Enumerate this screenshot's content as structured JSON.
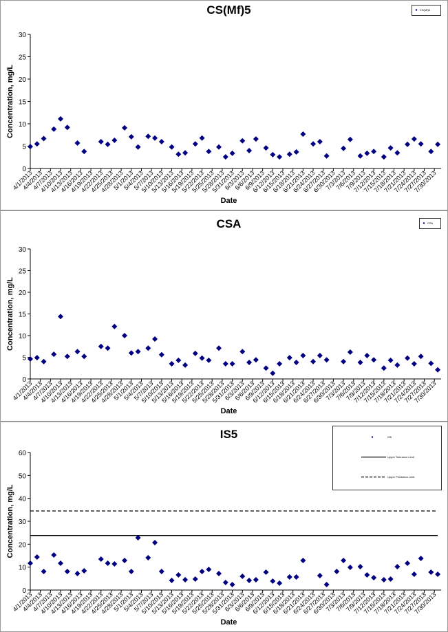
{
  "chart_data": [
    {
      "type": "scatter",
      "title": "CS(Mf)5",
      "x_label": "Date",
      "y_label": "Concentration, mg/L",
      "x": [
        "4/1/2013",
        "4/3/2013",
        "4/5/2013",
        "4/8/2013",
        "4/10/2013",
        "4/12/2013",
        "4/15/2013",
        "4/17/2013",
        "4/22/2013",
        "4/24/2013",
        "4/26/2013",
        "4/29/2013",
        "5/1/2013",
        "5/3/2013",
        "5/6/2013",
        "5/8/2013",
        "5/10/2013",
        "5/13/2013",
        "5/15/2013",
        "5/17/2013",
        "5/20/2013",
        "5/22/2013",
        "5/24/2013",
        "5/27/2013",
        "5/29/2013",
        "5/31/2013",
        "6/3/2013",
        "6/5/2013",
        "6/7/2013",
        "6/10/2013",
        "6/12/2013",
        "6/14/2013",
        "6/17/2013",
        "6/19/2013",
        "6/21/2013",
        "6/24/2013",
        "6/26/2013",
        "6/28/2013",
        "7/1/2013",
        "7/3/2013",
        "7/5/2013",
        "7/8/2013",
        "7/10/2013",
        "7/12/2013",
        "7/15/2013",
        "7/17/2013",
        "7/19/2013",
        "7/22/2013",
        "7/24/2013",
        "7/26/2013",
        "7/29/2013",
        "7/31/2013"
      ],
      "series": [
        {
          "name": "CS(Mf)5",
          "color": "#000080",
          "values": [
            4.9,
            5.5,
            6.7,
            8.8,
            11.1,
            9.2,
            5.7,
            3.8,
            6.0,
            5.4,
            6.3,
            9.1,
            7.1,
            4.8,
            7.2,
            6.8,
            6.0,
            4.8,
            3.2,
            3.5,
            5.5,
            6.8,
            3.8,
            4.8,
            2.6,
            3.4,
            6.2,
            4.0,
            6.6,
            4.6,
            3.1,
            2.6,
            3.2,
            3.7,
            7.7,
            5.5,
            6.0,
            2.8,
            null,
            4.5,
            6.5,
            2.8,
            3.4,
            3.8,
            2.6,
            4.6,
            3.5,
            5.4,
            6.6,
            5.5,
            3.8,
            5.4
          ]
        }
      ],
      "xlim": [
        "4/1/2013",
        "8/1/2013"
      ],
      "xticks": [
        "4/1/2013",
        "4/4/2013",
        "4/7/2013",
        "4/10/2013",
        "4/13/2013",
        "4/16/2013",
        "4/19/2013",
        "4/22/2013",
        "4/25/2013",
        "4/28/2013",
        "5/1/2013",
        "5/4/2013",
        "5/7/2013",
        "5/10/2013",
        "5/13/2013",
        "5/16/2013",
        "5/19/2013",
        "5/22/2013",
        "5/25/2013",
        "5/28/2013",
        "5/31/2013",
        "6/3/2013",
        "6/6/2013",
        "6/9/2013",
        "6/12/2013",
        "6/15/2013",
        "6/18/2013",
        "6/21/2013",
        "6/24/2013",
        "6/27/2013",
        "6/30/2013",
        "7/3/2013",
        "7/6/2013",
        "7/9/2013",
        "7/12/2013",
        "7/15/2013",
        "7/18/2013",
        "7/21/2013",
        "7/24/2013",
        "7/27/2013",
        "7/30/2013"
      ],
      "ylim": [
        0,
        30
      ],
      "yticks": [
        0,
        5,
        10,
        15,
        20,
        25,
        30
      ],
      "legend": "upper right"
    },
    {
      "type": "scatter",
      "title": "CSA",
      "x_label": "Date",
      "y_label": "Concentration, mg/L",
      "x": [
        "4/1/2013",
        "4/3/2013",
        "4/5/2013",
        "4/8/2013",
        "4/10/2013",
        "4/12/2013",
        "4/15/2013",
        "4/17/2013",
        "4/22/2013",
        "4/24/2013",
        "4/26/2013",
        "4/29/2013",
        "5/1/2013",
        "5/3/2013",
        "5/6/2013",
        "5/8/2013",
        "5/10/2013",
        "5/13/2013",
        "5/15/2013",
        "5/17/2013",
        "5/20/2013",
        "5/22/2013",
        "5/24/2013",
        "5/27/2013",
        "5/29/2013",
        "5/31/2013",
        "6/3/2013",
        "6/5/2013",
        "6/7/2013",
        "6/10/2013",
        "6/12/2013",
        "6/14/2013",
        "6/17/2013",
        "6/19/2013",
        "6/21/2013",
        "6/24/2013",
        "6/26/2013",
        "6/28/2013",
        "7/1/2013",
        "7/3/2013",
        "7/5/2013",
        "7/8/2013",
        "7/10/2013",
        "7/12/2013",
        "7/15/2013",
        "7/17/2013",
        "7/19/2013",
        "7/22/2013",
        "7/24/2013",
        "7/26/2013",
        "7/29/2013",
        "7/31/2013"
      ],
      "series": [
        {
          "name": "CSA",
          "color": "#000080",
          "values": [
            4.6,
            4.9,
            4.0,
            5.7,
            14.4,
            5.2,
            6.3,
            5.2,
            7.5,
            7.1,
            12.1,
            10.0,
            6.0,
            6.3,
            7.1,
            9.2,
            5.6,
            3.5,
            4.3,
            3.2,
            5.9,
            4.8,
            4.3,
            7.1,
            3.5,
            3.5,
            6.3,
            3.8,
            4.4,
            2.5,
            1.3,
            3.5,
            4.9,
            3.8,
            5.4,
            4.0,
            5.4,
            4.4,
            null,
            4.0,
            6.2,
            3.8,
            5.4,
            4.4,
            2.5,
            4.3,
            3.2,
            4.8,
            3.5,
            5.2,
            3.6,
            2.1
          ]
        }
      ],
      "xlim": [
        "4/1/2013",
        "8/1/2013"
      ],
      "xticks": [
        "4/1/2013",
        "4/4/2013",
        "4/7/2013",
        "4/10/2013",
        "4/13/2013",
        "4/16/2013",
        "4/19/2013",
        "4/22/2013",
        "4/25/2013",
        "4/28/2013",
        "5/1/2013",
        "5/4/2013",
        "5/7/2013",
        "5/10/2013",
        "5/13/2013",
        "5/16/2013",
        "5/19/2013",
        "5/22/2013",
        "5/25/2013",
        "5/28/2013",
        "5/31/2013",
        "6/3/2013",
        "6/6/2013",
        "6/9/2013",
        "6/12/2013",
        "6/15/2013",
        "6/18/2013",
        "6/21/2013",
        "6/24/2013",
        "6/27/2013",
        "6/30/2013",
        "7/3/2013",
        "7/6/2013",
        "7/9/2013",
        "7/12/2013",
        "7/15/2013",
        "7/18/2013",
        "7/21/2013",
        "7/24/2013",
        "7/27/2013",
        "7/30/2013"
      ],
      "ylim": [
        0,
        30
      ],
      "yticks": [
        0,
        5,
        10,
        15,
        20,
        25,
        30
      ],
      "legend": "upper right"
    },
    {
      "type": "scatter",
      "title": "IS5",
      "x_label": "Date",
      "y_label": "Concentration, mg/L",
      "x": [
        "4/1/2013",
        "4/3/2013",
        "4/5/2013",
        "4/8/2013",
        "4/10/2013",
        "4/12/2013",
        "4/15/2013",
        "4/17/2013",
        "4/22/2013",
        "4/24/2013",
        "4/26/2013",
        "4/29/2013",
        "5/1/2013",
        "5/3/2013",
        "5/6/2013",
        "5/8/2013",
        "5/10/2013",
        "5/13/2013",
        "5/15/2013",
        "5/17/2013",
        "5/20/2013",
        "5/22/2013",
        "5/24/2013",
        "5/27/2013",
        "5/29/2013",
        "5/31/2013",
        "6/3/2013",
        "6/5/2013",
        "6/7/2013",
        "6/10/2013",
        "6/12/2013",
        "6/14/2013",
        "6/17/2013",
        "6/19/2013",
        "6/21/2013",
        "6/24/2013",
        "6/26/2013",
        "6/28/2013",
        "7/1/2013",
        "7/3/2013",
        "7/5/2013",
        "7/8/2013",
        "7/10/2013",
        "7/12/2013",
        "7/15/2013",
        "7/17/2013",
        "7/19/2013",
        "7/22/2013",
        "7/24/2013",
        "7/26/2013",
        "7/29/2013",
        "7/31/2013"
      ],
      "series": [
        {
          "name": "IS5",
          "color": "#000080",
          "values": [
            11.7,
            14.4,
            8.1,
            15.3,
            11.7,
            8.1,
            7.2,
            8.4,
            13.5,
            11.7,
            11.4,
            12.9,
            8.1,
            22.8,
            14.1,
            20.7,
            8.1,
            4.2,
            6.6,
            4.5,
            4.8,
            8.1,
            9.0,
            7.2,
            3.3,
            2.4,
            6.0,
            4.2,
            4.5,
            7.8,
            3.9,
            3.0,
            5.7,
            5.7,
            12.9,
            null,
            6.3,
            2.4,
            8.1,
            12.9,
            9.9,
            10.2,
            6.6,
            5.4,
            4.5,
            4.8,
            10.2,
            11.7,
            6.9,
            13.8,
            7.8,
            6.9
          ]
        }
      ],
      "reference_lines": [
        {
          "name": "Upper Tolerance Limit",
          "value": 23.8,
          "style": "solid"
        },
        {
          "name": "Upper Prediction Limit",
          "value": 34.5,
          "style": "dashed"
        }
      ],
      "xlim": [
        "4/1/2013",
        "8/1/2013"
      ],
      "xticks": [
        "4/1/2013",
        "4/4/2013",
        "4/7/2013",
        "4/10/2013",
        "4/13/2013",
        "4/16/2013",
        "4/19/2013",
        "4/22/2013",
        "4/25/2013",
        "4/28/2013",
        "5/1/2013",
        "5/4/2013",
        "5/7/2013",
        "5/10/2013",
        "5/13/2013",
        "5/16/2013",
        "5/19/2013",
        "5/22/2013",
        "5/25/2013",
        "5/28/2013",
        "5/31/2013",
        "6/3/2013",
        "6/6/2013",
        "6/9/2013",
        "6/12/2013",
        "6/15/2013",
        "6/18/2013",
        "6/21/2013",
        "6/24/2013",
        "6/27/2013",
        "6/30/2013",
        "7/3/2013",
        "7/6/2013",
        "7/9/2013",
        "7/12/2013",
        "7/15/2013",
        "7/18/2013",
        "7/21/2013",
        "7/24/2013",
        "7/27/2013",
        "7/30/2013"
      ],
      "ylim": [
        0,
        60
      ],
      "yticks": [
        0,
        10,
        20,
        30,
        40,
        50,
        60
      ],
      "legend": "upper right"
    }
  ]
}
